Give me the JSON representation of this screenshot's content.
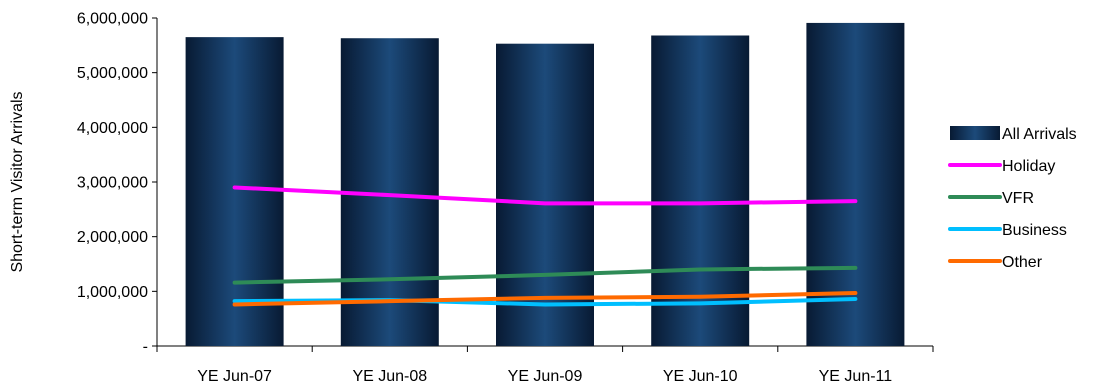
{
  "chart_data": {
    "type": "bar",
    "title": "",
    "xlabel": "",
    "ylabel": "Short-term Visitor Arrivals",
    "ylim": [
      0,
      6000000
    ],
    "y_ticks": [
      {
        "value": 0,
        "label": "-"
      },
      {
        "value": 1000000,
        "label": "1,000,000"
      },
      {
        "value": 2000000,
        "label": "2,000,000"
      },
      {
        "value": 3000000,
        "label": "3,000,000"
      },
      {
        "value": 4000000,
        "label": "4,000,000"
      },
      {
        "value": 5000000,
        "label": "5,000,000"
      },
      {
        "value": 6000000,
        "label": "6,000,000"
      }
    ],
    "categories": [
      "YE Jun-07",
      "YE Jun-08",
      "YE Jun-09",
      "YE Jun-10",
      "YE Jun-11"
    ],
    "grid": false,
    "legend_position": "right",
    "series": [
      {
        "name": "All Arrivals",
        "kind": "bar",
        "color": "#0d2b4e",
        "values": [
          5650000,
          5630000,
          5530000,
          5680000,
          5910000
        ]
      },
      {
        "name": "Holiday",
        "kind": "line",
        "color": "#ff00ff",
        "values": [
          2900000,
          2760000,
          2610000,
          2610000,
          2650000
        ]
      },
      {
        "name": "VFR",
        "kind": "line",
        "color": "#2e8b57",
        "values": [
          1160000,
          1220000,
          1300000,
          1400000,
          1430000
        ]
      },
      {
        "name": "Business",
        "kind": "line",
        "color": "#00bfff",
        "values": [
          820000,
          840000,
          760000,
          780000,
          860000
        ]
      },
      {
        "name": "Other",
        "kind": "line",
        "color": "#ff6a00",
        "values": [
          760000,
          820000,
          880000,
          900000,
          970000
        ]
      }
    ]
  }
}
